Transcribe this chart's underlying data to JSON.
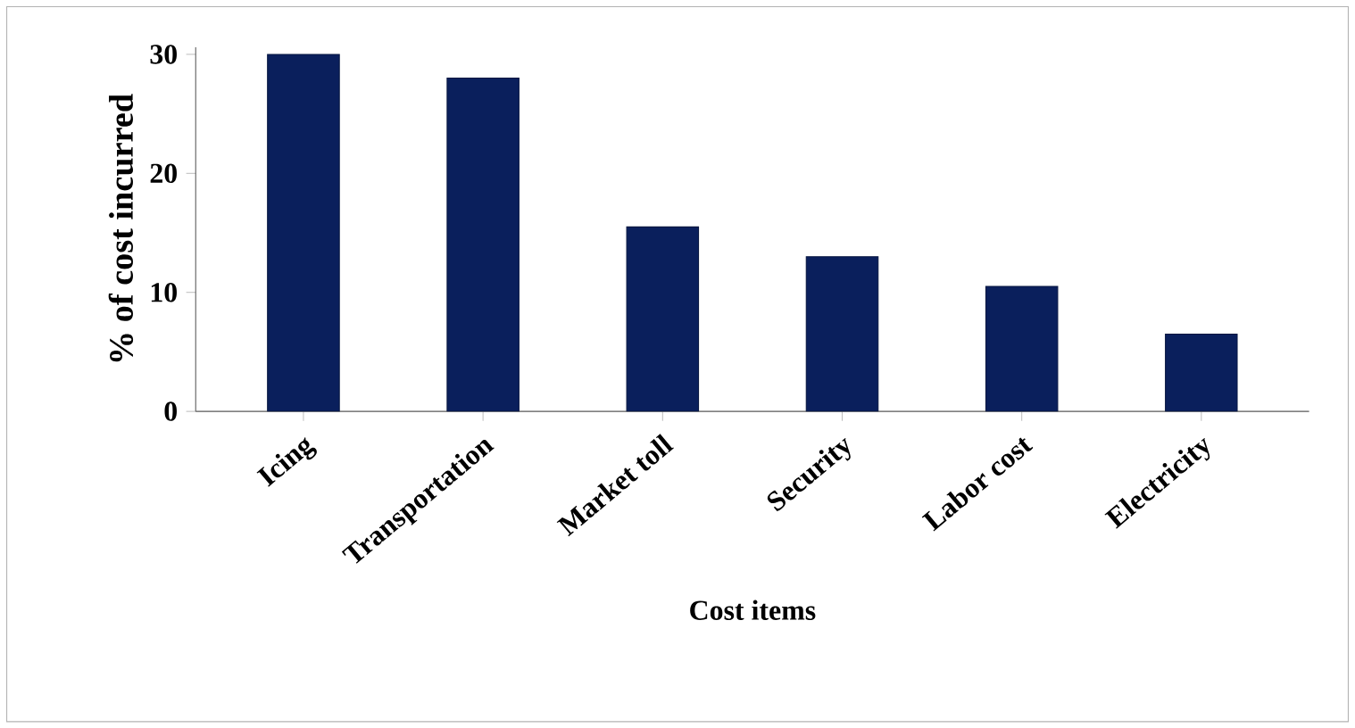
{
  "chart_data": {
    "type": "bar",
    "xlabel": "Cost items",
    "ylabel": "% of cost incurred",
    "categories": [
      "Icing",
      "Transportation",
      "Market toll",
      "Security",
      "Labor cost",
      "Electricity"
    ],
    "values": [
      30,
      28,
      15.5,
      13,
      10.5,
      6.5
    ],
    "color": "#0a1f5c",
    "ylim": [
      0,
      30
    ],
    "yticks": [
      0,
      10,
      20,
      30
    ]
  }
}
